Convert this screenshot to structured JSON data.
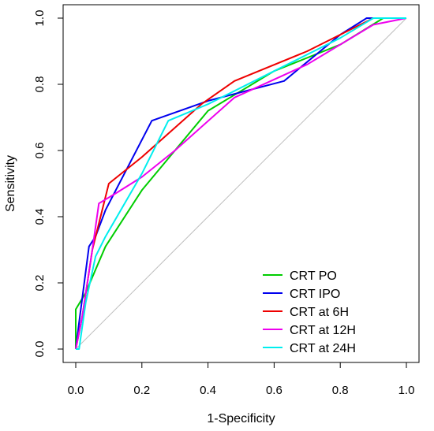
{
  "chart_data": {
    "type": "line",
    "title": "",
    "xlabel": "1-Specificity",
    "ylabel": "Sensitivity",
    "xlim": [
      0,
      1
    ],
    "ylim": [
      0,
      1
    ],
    "x_ticks": [
      "0.0",
      "0.2",
      "0.4",
      "0.6",
      "0.8",
      "1.0"
    ],
    "y_ticks": [
      "0.0",
      "0.2",
      "0.4",
      "0.6",
      "0.8",
      "1.0"
    ],
    "reference_line": {
      "x": [
        0,
        1
      ],
      "y": [
        0,
        1
      ],
      "color": "#bebebe"
    },
    "grid": false,
    "legend_position": "bottom-right",
    "series": [
      {
        "name": "CRT PO",
        "color": "#00cd00",
        "x": [
          0.0,
          0.0,
          0.03,
          0.06,
          0.09,
          0.2,
          0.4,
          0.6,
          0.8,
          0.93,
          1.0
        ],
        "y": [
          0.0,
          0.12,
          0.17,
          0.24,
          0.31,
          0.48,
          0.72,
          0.84,
          0.92,
          1.0,
          1.0
        ]
      },
      {
        "name": "CRT IPO",
        "color": "#0000ee",
        "x": [
          0.0,
          0.01,
          0.04,
          0.06,
          0.09,
          0.23,
          0.4,
          0.63,
          0.8,
          0.88,
          1.0
        ],
        "y": [
          0.0,
          0.08,
          0.31,
          0.34,
          0.42,
          0.69,
          0.75,
          0.81,
          0.95,
          1.0,
          1.0
        ]
      },
      {
        "name": "CRT at 6H",
        "color": "#ee0000",
        "x": [
          0.0,
          0.02,
          0.05,
          0.1,
          0.2,
          0.38,
          0.48,
          0.7,
          0.9,
          1.0
        ],
        "y": [
          0.0,
          0.1,
          0.3,
          0.5,
          0.58,
          0.74,
          0.81,
          0.9,
          1.0,
          1.0
        ]
      },
      {
        "name": "CRT at 12H",
        "color": "#ee00ee",
        "x": [
          0.0,
          0.02,
          0.05,
          0.07,
          0.12,
          0.2,
          0.3,
          0.48,
          0.7,
          0.9,
          1.0
        ],
        "y": [
          0.0,
          0.1,
          0.3,
          0.44,
          0.47,
          0.52,
          0.6,
          0.76,
          0.86,
          0.98,
          1.0
        ]
      },
      {
        "name": "CRT at 24H",
        "color": "#00eeee",
        "x": [
          0.0,
          0.01,
          0.03,
          0.06,
          0.09,
          0.2,
          0.28,
          0.4,
          0.6,
          0.8,
          0.9,
          1.0
        ],
        "y": [
          0.0,
          0.0,
          0.14,
          0.28,
          0.34,
          0.53,
          0.69,
          0.74,
          0.84,
          0.94,
          1.0,
          1.0
        ]
      }
    ]
  }
}
